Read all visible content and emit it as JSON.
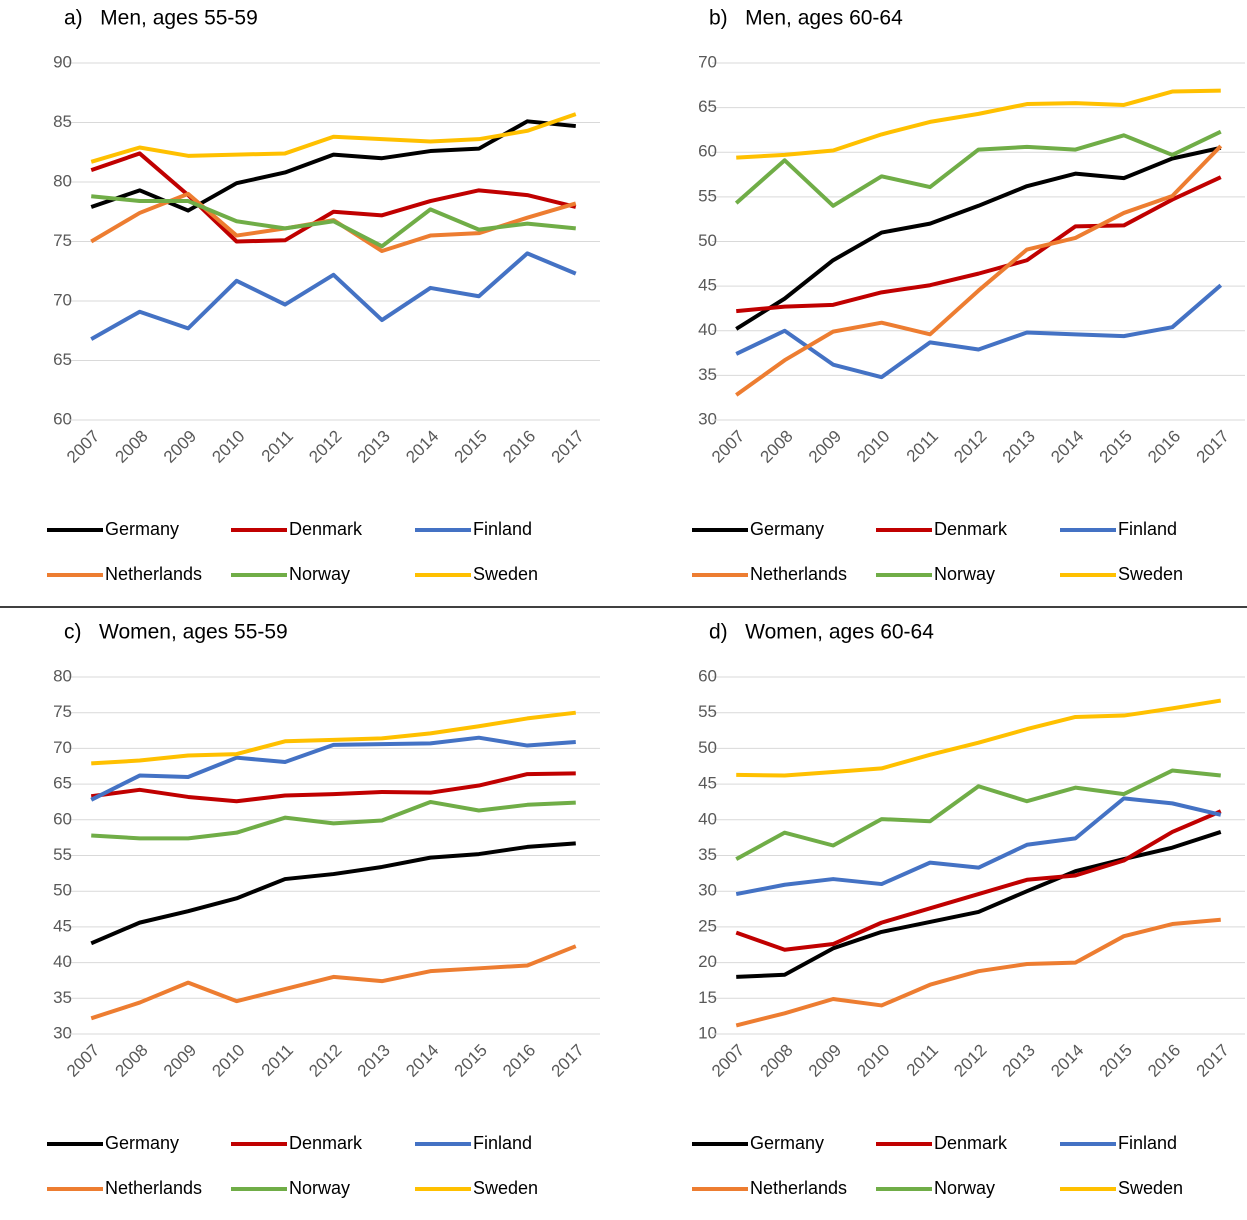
{
  "chart_data": [
    {
      "type": "line",
      "title": "a)   Men, ages 55-59",
      "categories": [
        "2007",
        "2008",
        "2009",
        "2010",
        "2011",
        "2012",
        "2013",
        "2014",
        "2015",
        "2016",
        "2017"
      ],
      "ylim": [
        60,
        90
      ],
      "yticks": [
        60,
        65,
        70,
        75,
        80,
        85,
        90
      ],
      "grid": true,
      "series": [
        {
          "name": "Germany",
          "color": "#000000",
          "values": [
            77.9,
            79.3,
            77.6,
            79.9,
            80.8,
            82.3,
            82.0,
            82.6,
            82.8,
            85.1,
            84.7
          ]
        },
        {
          "name": "Denmark",
          "color": "#c00000",
          "values": [
            81.0,
            82.4,
            78.9,
            75.0,
            75.1,
            77.5,
            77.2,
            78.4,
            79.3,
            78.9,
            77.9
          ]
        },
        {
          "name": "Finland",
          "color": "#4472c4",
          "values": [
            66.8,
            69.1,
            67.7,
            71.7,
            69.7,
            72.2,
            68.4,
            71.1,
            70.4,
            74.0,
            72.3
          ]
        },
        {
          "name": "Netherlands",
          "color": "#ed7d31",
          "values": [
            75.0,
            77.4,
            79.0,
            75.5,
            76.1,
            76.8,
            74.2,
            75.5,
            75.7,
            77.0,
            78.2
          ]
        },
        {
          "name": "Norway",
          "color": "#70ad47",
          "values": [
            78.8,
            78.4,
            78.4,
            76.7,
            76.1,
            76.7,
            74.6,
            77.7,
            76.0,
            76.5,
            76.1
          ]
        },
        {
          "name": "Sweden",
          "color": "#ffc000",
          "values": [
            81.7,
            82.9,
            82.2,
            82.3,
            82.4,
            83.8,
            83.6,
            83.4,
            83.6,
            84.3,
            85.7
          ]
        }
      ]
    },
    {
      "type": "line",
      "title": "b)   Men, ages 60-64",
      "categories": [
        "2007",
        "2008",
        "2009",
        "2010",
        "2011",
        "2012",
        "2013",
        "2014",
        "2015",
        "2016",
        "2017"
      ],
      "ylim": [
        30,
        70
      ],
      "yticks": [
        30,
        35,
        40,
        45,
        50,
        55,
        60,
        65,
        70
      ],
      "grid": true,
      "series": [
        {
          "name": "Germany",
          "color": "#000000",
          "values": [
            40.2,
            43.6,
            47.9,
            51.0,
            52.0,
            54.0,
            56.2,
            57.6,
            57.1,
            59.3,
            60.5
          ]
        },
        {
          "name": "Denmark",
          "color": "#c00000",
          "values": [
            42.2,
            42.7,
            42.9,
            44.3,
            45.1,
            46.4,
            47.9,
            51.7,
            51.8,
            54.7,
            57.2
          ]
        },
        {
          "name": "Finland",
          "color": "#4472c4",
          "values": [
            37.4,
            40.0,
            36.2,
            34.8,
            38.7,
            37.9,
            39.8,
            39.6,
            39.4,
            40.4,
            45.1
          ]
        },
        {
          "name": "Netherlands",
          "color": "#ed7d31",
          "values": [
            32.8,
            36.7,
            39.9,
            40.9,
            39.6,
            44.5,
            49.1,
            50.4,
            53.2,
            55.1,
            60.7
          ]
        },
        {
          "name": "Norway",
          "color": "#70ad47",
          "values": [
            54.3,
            59.1,
            54.0,
            57.3,
            56.1,
            60.3,
            60.6,
            60.3,
            61.9,
            59.7,
            62.3
          ]
        },
        {
          "name": "Sweden",
          "color": "#ffc000",
          "values": [
            59.4,
            59.7,
            60.2,
            62.0,
            63.4,
            64.3,
            65.4,
            65.5,
            65.3,
            66.8,
            66.9
          ]
        }
      ]
    },
    {
      "type": "line",
      "title": "c)   Women, ages 55-59",
      "categories": [
        "2007",
        "2008",
        "2009",
        "2010",
        "2011",
        "2012",
        "2013",
        "2014",
        "2015",
        "2016",
        "2017"
      ],
      "ylim": [
        30,
        80
      ],
      "yticks": [
        30,
        35,
        40,
        45,
        50,
        55,
        60,
        65,
        70,
        75,
        80
      ],
      "grid": true,
      "series": [
        {
          "name": "Germany",
          "color": "#000000",
          "values": [
            42.7,
            45.6,
            47.2,
            49.0,
            51.7,
            52.4,
            53.4,
            54.7,
            55.2,
            56.2,
            56.7
          ]
        },
        {
          "name": "Denmark",
          "color": "#c00000",
          "values": [
            63.3,
            64.2,
            63.2,
            62.6,
            63.4,
            63.6,
            63.9,
            63.8,
            64.8,
            66.4,
            66.5
          ]
        },
        {
          "name": "Finland",
          "color": "#4472c4",
          "values": [
            62.8,
            66.2,
            66.0,
            68.7,
            68.1,
            70.5,
            70.6,
            70.7,
            71.5,
            70.4,
            70.9
          ]
        },
        {
          "name": "Netherlands",
          "color": "#ed7d31",
          "values": [
            32.2,
            34.4,
            37.2,
            34.6,
            36.3,
            38.0,
            37.4,
            38.8,
            39.2,
            39.6,
            42.3
          ]
        },
        {
          "name": "Norway",
          "color": "#70ad47",
          "values": [
            57.8,
            57.4,
            57.4,
            58.2,
            60.3,
            59.5,
            59.9,
            62.5,
            61.3,
            62.1,
            62.4
          ]
        },
        {
          "name": "Sweden",
          "color": "#ffc000",
          "values": [
            67.9,
            68.3,
            69.0,
            69.2,
            71.0,
            71.2,
            71.4,
            72.1,
            73.1,
            74.2,
            75.0
          ]
        }
      ]
    },
    {
      "type": "line",
      "title": "d)   Women, ages 60-64",
      "categories": [
        "2007",
        "2008",
        "2009",
        "2010",
        "2011",
        "2012",
        "2013",
        "2014",
        "2015",
        "2016",
        "2017"
      ],
      "ylim": [
        10,
        60
      ],
      "yticks": [
        10,
        15,
        20,
        25,
        30,
        35,
        40,
        45,
        50,
        55,
        60
      ],
      "grid": true,
      "series": [
        {
          "name": "Germany",
          "color": "#000000",
          "values": [
            18.0,
            18.3,
            22.0,
            24.3,
            25.7,
            27.1,
            30.0,
            32.8,
            34.5,
            36.1,
            38.3
          ]
        },
        {
          "name": "Denmark",
          "color": "#c00000",
          "values": [
            24.2,
            21.8,
            22.6,
            25.6,
            27.6,
            29.6,
            31.6,
            32.2,
            34.3,
            38.3,
            41.2
          ]
        },
        {
          "name": "Finland",
          "color": "#4472c4",
          "values": [
            29.6,
            30.9,
            31.7,
            31.0,
            34.0,
            33.3,
            36.5,
            37.4,
            43.0,
            42.3,
            40.7
          ]
        },
        {
          "name": "Netherlands",
          "color": "#ed7d31",
          "values": [
            11.2,
            12.9,
            14.9,
            14.0,
            16.9,
            18.8,
            19.8,
            20.0,
            23.7,
            25.4,
            26.0
          ]
        },
        {
          "name": "Norway",
          "color": "#70ad47",
          "values": [
            34.5,
            38.2,
            36.4,
            40.1,
            39.8,
            44.7,
            42.6,
            44.5,
            43.6,
            46.9,
            46.2
          ]
        },
        {
          "name": "Sweden",
          "color": "#ffc000",
          "values": [
            46.3,
            46.2,
            46.7,
            47.2,
            49.1,
            50.8,
            52.7,
            54.4,
            54.6,
            55.6,
            56.7
          ]
        }
      ]
    }
  ]
}
